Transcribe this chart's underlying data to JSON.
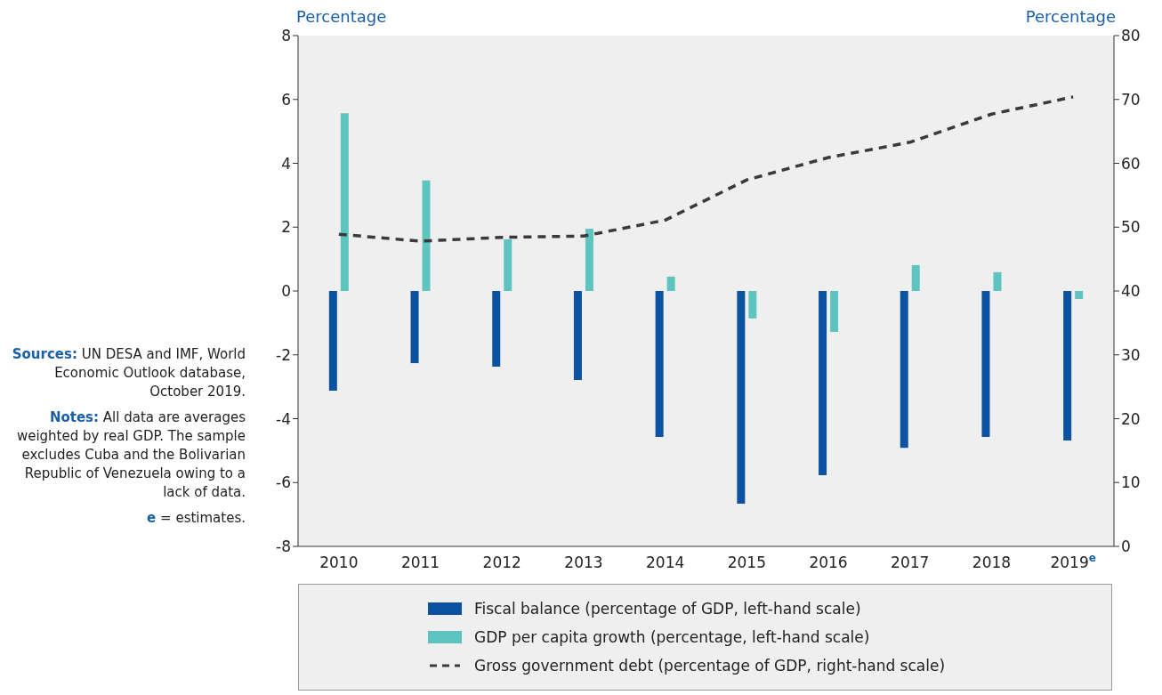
{
  "chart_data": {
    "type": "bar",
    "ylabel": "Percentage",
    "y2label": "Percentage",
    "categories": [
      "2010",
      "2011",
      "2012",
      "2013",
      "2014",
      "2015",
      "2016",
      "2017",
      "2018",
      "2019$^{e}$"
    ],
    "series": [
      {
        "name": "Fiscal balance (percentage of GDP, left-hand scale)",
        "color": "#0b52a0",
        "values": [
          -3.12,
          -2.26,
          -2.37,
          -2.79,
          -4.57,
          -6.66,
          -5.77,
          -4.91,
          -4.57,
          -4.68
        ]
      },
      {
        "name": "GDP per capita growth (percentage, left-hand scale)",
        "color": "#5ec4c0",
        "values": [
          5.57,
          3.46,
          1.62,
          1.95,
          0.45,
          -0.86,
          -1.28,
          0.81,
          0.59,
          -0.25
        ]
      },
      {
        "name": "Gross government debt (percentage of GDP, right-hand scale)",
        "type": "line",
        "axis": "y2",
        "line_style": "dashed",
        "color": "#3a3a3a",
        "values": [
          48.9,
          47.8,
          48.4,
          48.6,
          51.1,
          57.4,
          60.9,
          63.3,
          67.7,
          70.4
        ]
      }
    ],
    "ylim": [
      -8,
      8
    ],
    "yticks": [
      -8,
      -6,
      -4,
      -2,
      0,
      2,
      4,
      6,
      8
    ],
    "y2lim": [
      0,
      80
    ],
    "y2ticks": [
      0,
      10,
      20,
      30,
      40,
      50,
      60,
      70,
      80
    ],
    "grid": false,
    "legend": "bottom",
    "annotations": [
      "Sources: UN DESA and IMF, World Economic Outlook database, October 2019.",
      "Notes: All data are averages weighted by real GDP. The sample excludes Cuba and the Bolivarian Republic of Venezuela owing to a lack of data.",
      "e = estimates."
    ]
  }
}
